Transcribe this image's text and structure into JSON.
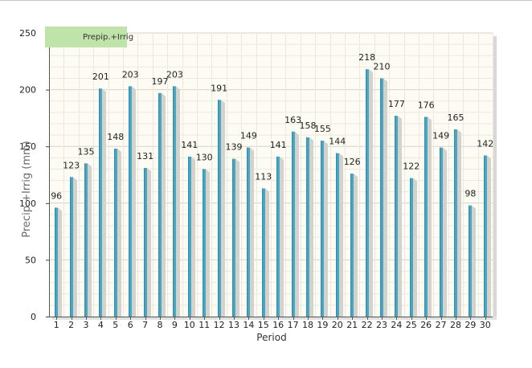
{
  "chart_data": {
    "type": "bar",
    "title": "",
    "xlabel": "Period",
    "ylabel": "Precip.+Irrig (mm)",
    "ylim": [
      0,
      250
    ],
    "yticks": [
      0,
      50,
      100,
      150,
      200,
      250
    ],
    "categories": [
      "1",
      "2",
      "3",
      "4",
      "5",
      "6",
      "7",
      "8",
      "9",
      "10",
      "11",
      "12",
      "13",
      "14",
      "15",
      "16",
      "17",
      "18",
      "19",
      "20",
      "21",
      "22",
      "23",
      "24",
      "25",
      "26",
      "27",
      "28",
      "29",
      "30"
    ],
    "series": [
      {
        "name": "Prepip.+Irrig",
        "values": [
          96,
          123,
          135,
          201,
          148,
          203,
          131,
          197,
          203,
          141,
          130,
          191,
          139,
          149,
          113,
          141,
          163,
          158,
          155,
          144,
          126,
          218,
          210,
          177,
          122,
          176,
          149,
          165,
          98,
          142
        ]
      }
    ],
    "grid": true,
    "legend": "top-left",
    "colors": {
      "bar": "#4aa8c4",
      "bar_dark": "#2f8fab",
      "shadow": "#d4d2cc",
      "plot_bg": "#fdfcf4",
      "grid": "#d6d3c6",
      "legend_bg": "#bfe3a8"
    }
  }
}
